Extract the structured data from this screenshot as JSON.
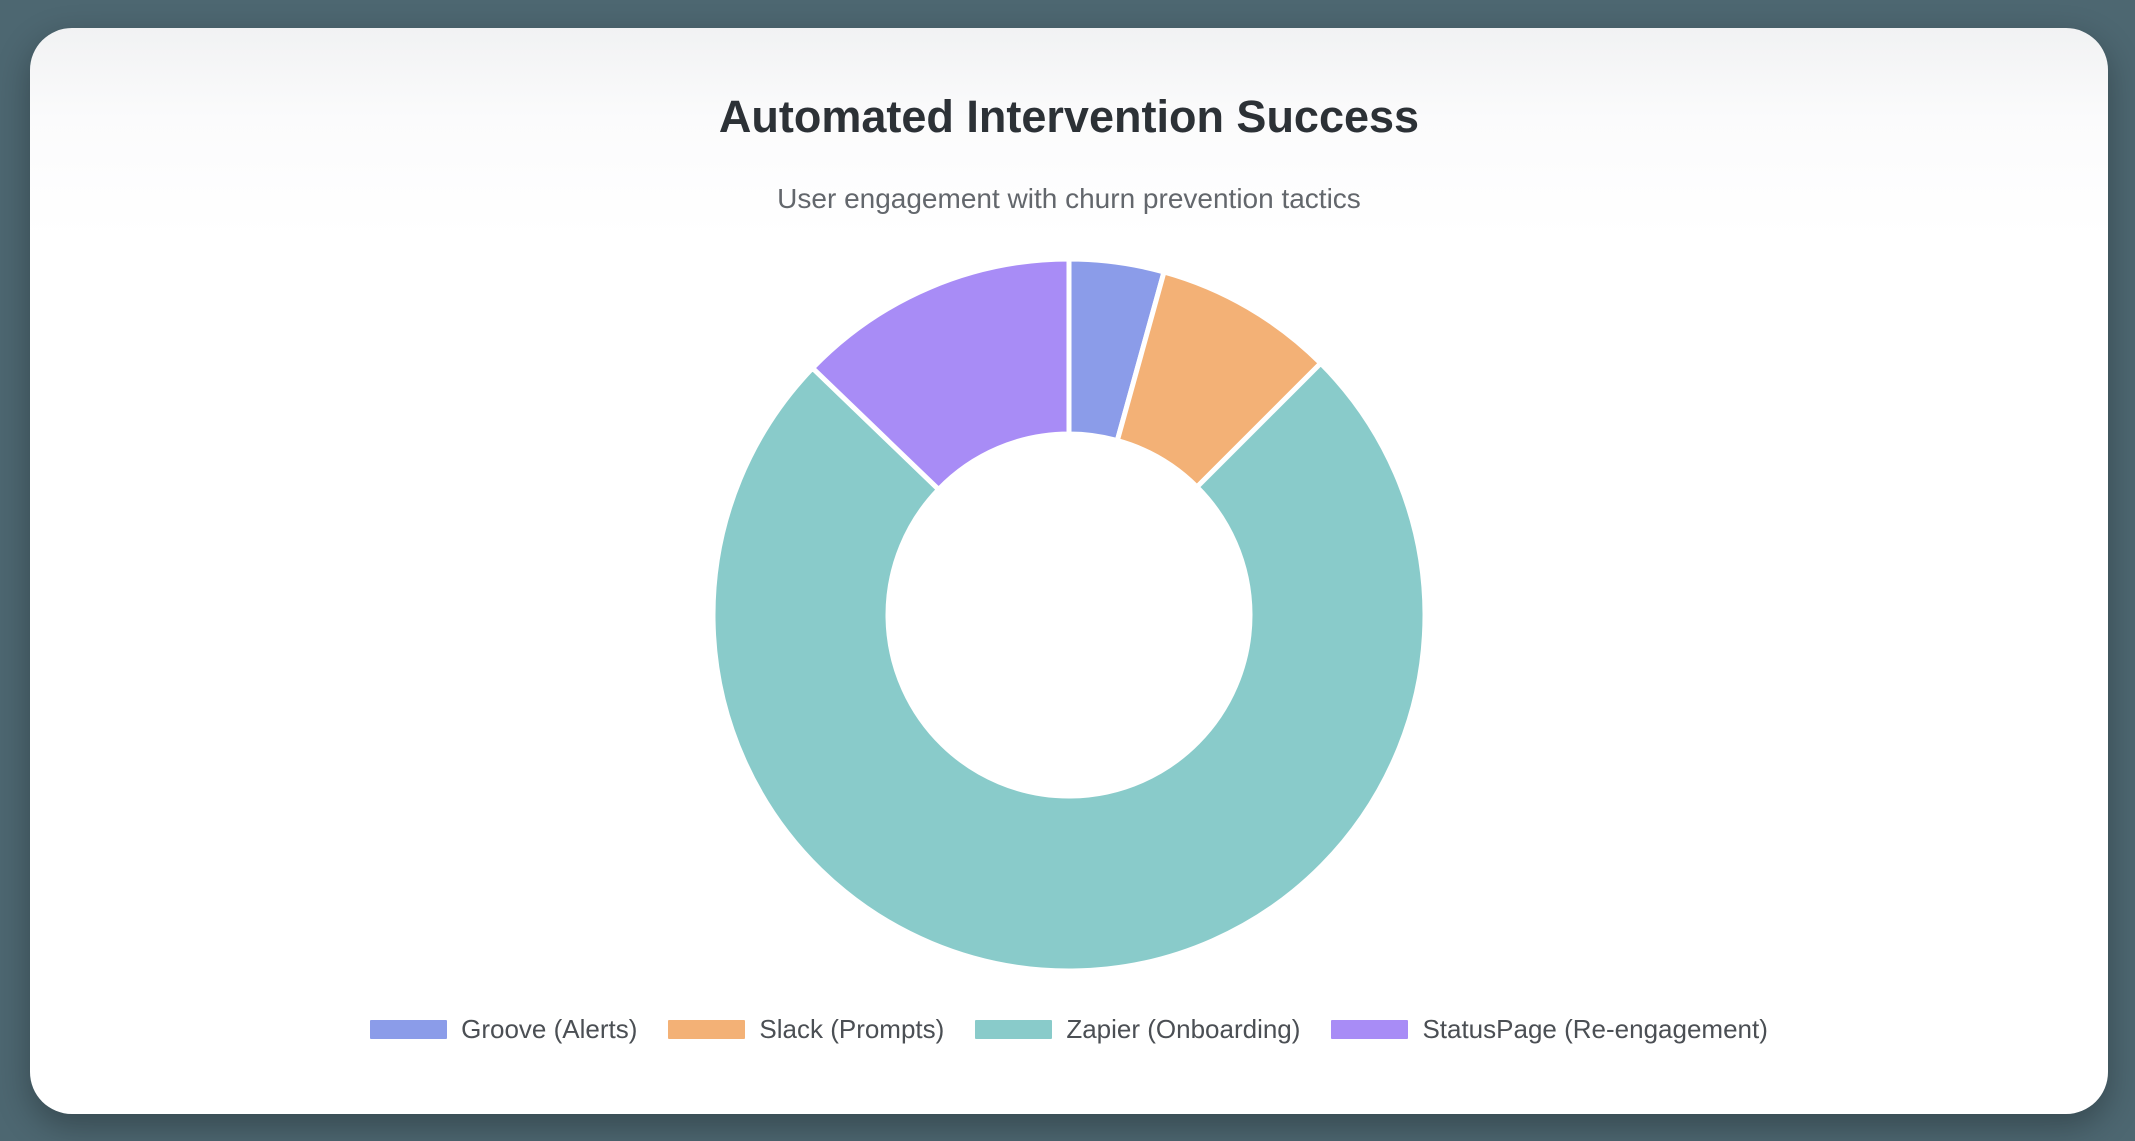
{
  "page": {
    "background_color": "#4d6771",
    "card_color": "#ffffff"
  },
  "chart_data": {
    "type": "pie",
    "donut": true,
    "cutout_percent": 51,
    "title": "Automated Intervention Success",
    "subtitle": "User engagement with churn prevention tactics",
    "legend_position": "bottom",
    "labels": [
      "Groove (Alerts)",
      "Slack (Prompts)",
      "Zapier (Onboarding)",
      "StatusPage (Re-engagement)"
    ],
    "values": [
      4.3,
      8.2,
      74.7,
      12.8
    ],
    "value_note": "percent share of whole, estimated from arc angles (no numeric labels shown in chart)",
    "start_angle_deg": 0,
    "direction": "clockwise",
    "colors": [
      "#8b9ce9",
      "#f3b176",
      "#89cbca",
      "#a88cf6"
    ],
    "slice_border_color": "#ffffff"
  }
}
